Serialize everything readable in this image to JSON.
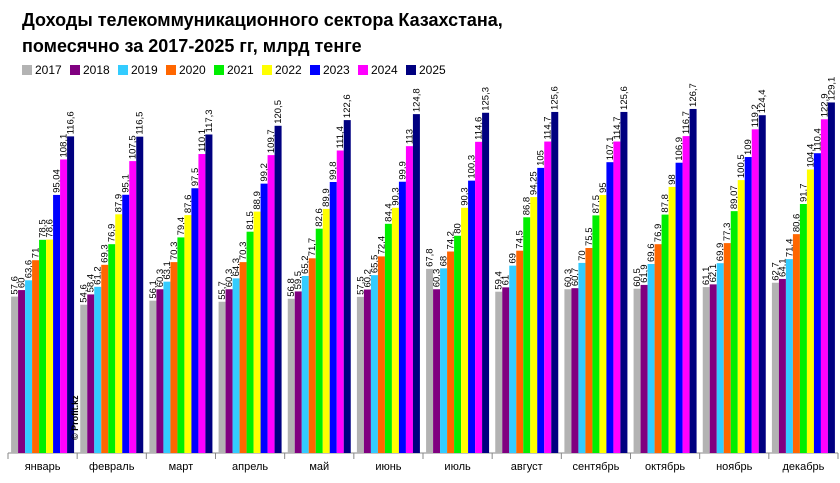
{
  "chart_data": {
    "type": "bar",
    "title": [
      "Доходы телекоммуникационного сектора Казахстана,",
      "помесячно за 2017-2025 гг, млрд тенге"
    ],
    "watermark": "© Profit.kz",
    "categories": [
      "январь",
      "февраль",
      "март",
      "апрель",
      "май",
      "июнь",
      "июль",
      "август",
      "сентябрь",
      "октябрь",
      "ноябрь",
      "декабрь"
    ],
    "ylim": [
      0,
      130
    ],
    "series": [
      {
        "name": "2017",
        "color": "#b3b3b3",
        "values": [
          57.6,
          54.6,
          56.1,
          55.7,
          56.8,
          57.5,
          67.8,
          59.4,
          60.3,
          60.5,
          61.1,
          62.7
        ],
        "value_labels": [
          "57,6",
          "54,6",
          "56,1",
          "55,7",
          "56,8",
          "57,5",
          "67,8",
          "59,4",
          "60,3",
          "60,5",
          "61,1",
          "62,7"
        ]
      },
      {
        "name": "2018",
        "color": "#800080",
        "values": [
          60,
          58.4,
          60.3,
          60.3,
          59.5,
          60.2,
          60.3,
          61,
          60.7,
          61.9,
          62.1,
          64.1
        ],
        "value_labels": [
          "60",
          "58,4",
          "60,3",
          "60,3",
          "59,5",
          "60,2",
          "60,3",
          "61",
          "60,7",
          "61,9",
          "62,1",
          "64,1"
        ]
      },
      {
        "name": "2019",
        "color": "#33ccff",
        "values": [
          63.6,
          61.2,
          63.1,
          64.3,
          65.2,
          65.5,
          68,
          69,
          70,
          69.6,
          69.9,
          71.4
        ],
        "value_labels": [
          "63,6",
          "61,2",
          "63,1",
          "64,3",
          "65,2",
          "65,5",
          "68",
          "69",
          "70",
          "69,6",
          "69,9",
          "71,4"
        ]
      },
      {
        "name": "2020",
        "color": "#ff6600",
        "values": [
          71,
          69.3,
          70.3,
          70.3,
          71.7,
          72.4,
          74.2,
          74.5,
          75.5,
          76.9,
          77.3,
          80.6
        ],
        "value_labels": [
          "71",
          "69,3",
          "70,3",
          "70,3",
          "71,7",
          "72,4",
          "74,2",
          "74,5",
          "75,5",
          "76,9",
          "77,3",
          "80,6"
        ]
      },
      {
        "name": "2021",
        "color": "#00ee00",
        "values": [
          78.5,
          76.9,
          79.4,
          81.5,
          82.6,
          84.4,
          80,
          86.8,
          87.5,
          87.8,
          89.07,
          91.7
        ],
        "value_labels": [
          "78,5",
          "76,9",
          "79,4",
          "81,5",
          "82,6",
          "84,4",
          "80",
          "86,8",
          "87,5",
          "87,8",
          "89,07",
          "91,7"
        ]
      },
      {
        "name": "2022",
        "color": "#ffff00",
        "values": [
          78.6,
          87.9,
          87.6,
          88.9,
          89.9,
          90.3,
          90.3,
          94.25,
          95,
          98,
          100.5,
          104.4
        ],
        "value_labels": [
          "78,6",
          "87,9",
          "87,6",
          "88,9",
          "89,9",
          "90,3",
          "90,3",
          "94,25",
          "95",
          "98",
          "100,5",
          "104,4"
        ]
      },
      {
        "name": "2023",
        "color": "#0000ff",
        "values": [
          95.04,
          95.1,
          97.5,
          99.2,
          99.8,
          99.9,
          100.3,
          105,
          107.1,
          106.9,
          109,
          110.4
        ],
        "value_labels": [
          "95,04",
          "95,1",
          "97,5",
          "99,2",
          "99,8",
          "99,9",
          "100,3",
          "105",
          "107,1",
          "106,9",
          "109",
          "110,4"
        ]
      },
      {
        "name": "2024",
        "color": "#ff00ff",
        "values": [
          108.1,
          107.5,
          110.1,
          109.7,
          111.4,
          113,
          114.6,
          114.7,
          114.7,
          116.7,
          119.2,
          122.9
        ],
        "value_labels": [
          "108,1",
          "107,5",
          "110,1",
          "109,7",
          "111,4",
          "113",
          "114,6",
          "114,7",
          "114,7",
          "116,7",
          "119,2",
          "122,9"
        ]
      },
      {
        "name": "2025",
        "color": "#000080",
        "values": [
          116.6,
          116.5,
          117.3,
          120.5,
          122.6,
          124.8,
          125.3,
          125.6,
          125.6,
          126.7,
          124.4,
          129.1
        ],
        "value_labels": [
          "116,6",
          "116,5",
          "117,3",
          "120,5",
          "122,6",
          "124,8",
          "125,3",
          "125,6",
          "125,6",
          "126,7",
          "124,4",
          "129,1"
        ]
      }
    ]
  }
}
